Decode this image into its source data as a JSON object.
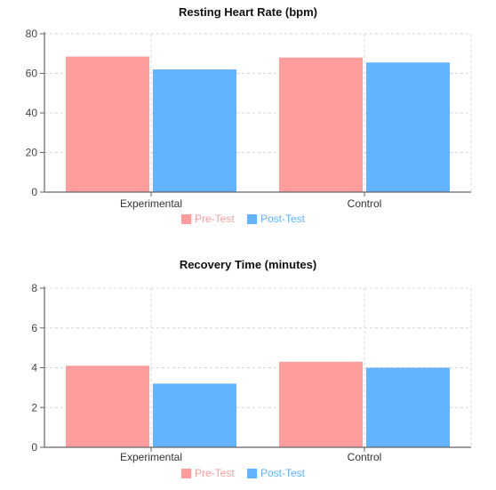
{
  "chart_data": [
    {
      "type": "bar",
      "title": "Resting Heart Rate (bpm)",
      "categories": [
        "Experimental",
        "Control"
      ],
      "series": [
        {
          "name": "Pre-Test",
          "values": [
            68.5,
            68
          ]
        },
        {
          "name": "Post-Test",
          "values": [
            62,
            65.5
          ]
        }
      ],
      "ylim": [
        0,
        80
      ],
      "yticks": [
        0,
        20,
        40,
        60,
        80
      ],
      "grid": true,
      "legend_position": "bottom",
      "colors": [
        "#ff9c9c",
        "#63b3ff"
      ]
    },
    {
      "type": "bar",
      "title": "Recovery Time (minutes)",
      "categories": [
        "Experimental",
        "Control"
      ],
      "series": [
        {
          "name": "Pre-Test",
          "values": [
            4.1,
            4.3
          ]
        },
        {
          "name": "Post-Test",
          "values": [
            3.2,
            4.0
          ]
        }
      ],
      "ylim": [
        0,
        8
      ],
      "yticks": [
        0,
        2,
        4,
        6,
        8
      ],
      "grid": true,
      "legend_position": "bottom",
      "colors": [
        "#ff9c9c",
        "#63b3ff"
      ]
    }
  ]
}
